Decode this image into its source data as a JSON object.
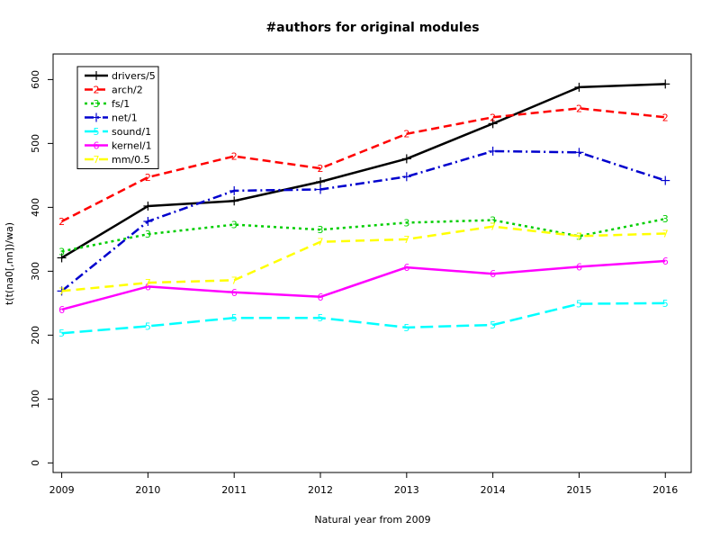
{
  "chart_data": {
    "type": "line",
    "title": "#authors for original modules",
    "xlabel": "Natural year from 2009",
    "ylabel": "t(t(na0[,nn])/wa)",
    "x": [
      2009,
      2010,
      2011,
      2012,
      2013,
      2014,
      2015,
      2016
    ],
    "xlim": [
      2008.9,
      2016.3
    ],
    "ylim": [
      -15,
      640
    ],
    "y_ticks": [
      0,
      100,
      200,
      300,
      400,
      500,
      600
    ],
    "legend_position": "top-left",
    "series": [
      {
        "name": "drivers/5",
        "marker": "+",
        "color": "#000000",
        "dash": "",
        "width": 2.5,
        "values": [
          321,
          402,
          410,
          440,
          476,
          531,
          588,
          593
        ]
      },
      {
        "name": "arch/2",
        "marker": "2",
        "color": "#ff0000",
        "dash": "9,5",
        "width": 2.5,
        "values": [
          378,
          447,
          480,
          461,
          515,
          541,
          555,
          541
        ]
      },
      {
        "name": "fs/1",
        "marker": "3",
        "color": "#00cd00",
        "dash": "3,4",
        "width": 2.5,
        "values": [
          331,
          358,
          373,
          365,
          376,
          380,
          355,
          382
        ]
      },
      {
        "name": "net/1",
        "marker": "+",
        "color": "#0000cd",
        "dash": "10,4,2,4",
        "width": 2.5,
        "values": [
          269,
          378,
          426,
          428,
          448,
          488,
          486,
          442
        ]
      },
      {
        "name": "sound/1",
        "marker": "5",
        "color": "#00ffff",
        "dash": "14,6",
        "width": 2.5,
        "values": [
          203,
          214,
          227,
          227,
          212,
          216,
          249,
          250
        ]
      },
      {
        "name": "kernel/1",
        "marker": "6",
        "color": "#ff00ff",
        "dash": "",
        "width": 2.5,
        "values": [
          240,
          276,
          267,
          260,
          306,
          296,
          307,
          316
        ]
      },
      {
        "name": "mm/0.5",
        "marker": "7",
        "color": "#ffff00",
        "dash": "10,6",
        "width": 2.5,
        "values": [
          269,
          282,
          286,
          346,
          350,
          370,
          355,
          359
        ]
      }
    ]
  }
}
